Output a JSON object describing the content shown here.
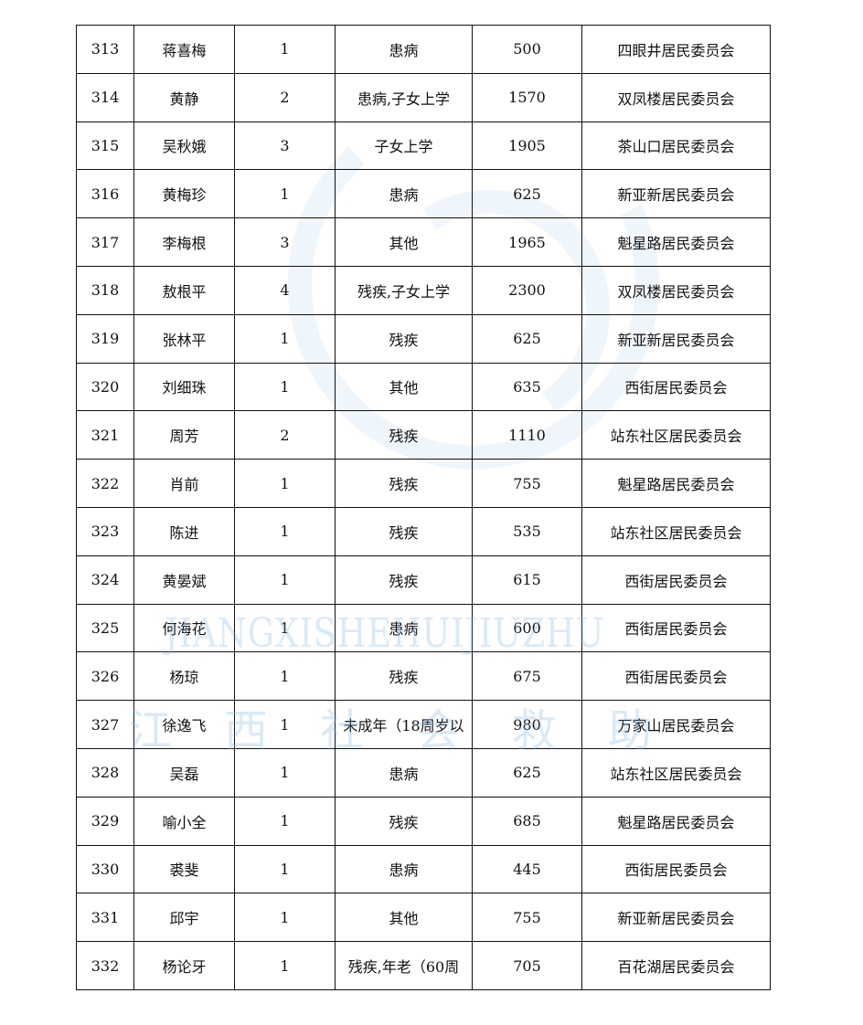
{
  "watermark": {
    "pinyin": "JIANGXISHEHUIJIUZHU",
    "chinese": "江西社会救助",
    "color": "#a8d0ee"
  },
  "table": {
    "rows": [
      [
        "313",
        "蒋喜梅",
        "1",
        "患病",
        "500",
        "四眼井居民委员会"
      ],
      [
        "314",
        "黄静",
        "2",
        "患病,子女上学",
        "1570",
        "双凤楼居民委员会"
      ],
      [
        "315",
        "吴秋娥",
        "3",
        "子女上学",
        "1905",
        "茶山口居民委员会"
      ],
      [
        "316",
        "黄梅珍",
        "1",
        "患病",
        "625",
        "新亚新居民委员会"
      ],
      [
        "317",
        "李梅根",
        "3",
        "其他",
        "1965",
        "魁星路居民委员会"
      ],
      [
        "318",
        "敖根平",
        "4",
        "残疾,子女上学",
        "2300",
        "双凤楼居民委员会"
      ],
      [
        "319",
        "张林平",
        "1",
        "残疾",
        "625",
        "新亚新居民委员会"
      ],
      [
        "320",
        "刘细珠",
        "1",
        "其他",
        "635",
        "西街居民委员会"
      ],
      [
        "321",
        "周芳",
        "2",
        "残疾",
        "1110",
        "站东社区居民委员会"
      ],
      [
        "322",
        "肖前",
        "1",
        "残疾",
        "755",
        "魁星路居民委员会"
      ],
      [
        "323",
        "陈进",
        "1",
        "残疾",
        "535",
        "站东社区居民委员会"
      ],
      [
        "324",
        "黄晏斌",
        "1",
        "残疾",
        "615",
        "西街居民委员会"
      ],
      [
        "325",
        "何海花",
        "1",
        "患病",
        "600",
        "西街居民委员会"
      ],
      [
        "326",
        "杨琼",
        "1",
        "残疾",
        "675",
        "西街居民委员会"
      ],
      [
        "327",
        "徐逸飞",
        "1",
        "未成年（18周岁以",
        "980",
        "万家山居民委员会"
      ],
      [
        "328",
        "吴磊",
        "1",
        "患病",
        "625",
        "站东社区居民委员会"
      ],
      [
        "329",
        "喻小全",
        "1",
        "残疾",
        "685",
        "魁星路居民委员会"
      ],
      [
        "330",
        "裘斐",
        "1",
        "患病",
        "445",
        "西街居民委员会"
      ],
      [
        "331",
        "邱宇",
        "1",
        "其他",
        "755",
        "新亚新居民委员会"
      ],
      [
        "332",
        "杨论牙",
        "1",
        "残疾,年老（60周",
        "705",
        "百花湖居民委员会"
      ]
    ]
  }
}
